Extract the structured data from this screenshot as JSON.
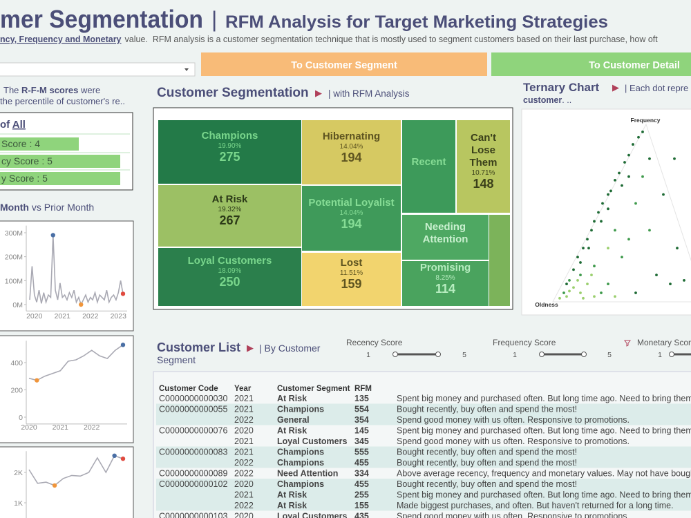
{
  "header": {
    "title": "mer Segmentation",
    "divider": "|",
    "subtitle": "RFM Analysis for Target Marketing Strategies",
    "description_emphasis": "ncy, Frequency and Monetary",
    "description": "value.  RFM analysis is a customer segmentation technique that is mostly used to segment customers based on their last purchase, how oft"
  },
  "nav_buttons": [
    "To Customer Segment",
    "To Customer Detail"
  ],
  "score_note": {
    "prefix": "The",
    "emphasis": "R-F-M scores",
    "suffix": "were",
    "line2": "the percentile of customer's re.."
  },
  "score_box": {
    "title_prefix": "of",
    "title_value": "All",
    "scores": [
      "Score : 4",
      "cy Score : 5",
      "y Score : 5"
    ]
  },
  "trend_title": {
    "emphasis": "Month",
    "rest": "vs Prior Month"
  },
  "trend_charts": [
    {
      "type": "line",
      "categories": [
        null,
        null,
        "2020",
        null,
        null,
        null,
        null,
        null,
        null,
        null,
        null,
        null,
        null,
        null,
        "2021",
        null,
        null,
        null,
        null,
        null,
        null,
        null,
        null,
        null,
        null,
        null,
        "2022",
        null,
        null,
        null,
        null,
        null,
        null,
        null,
        null,
        null,
        null,
        null,
        "2023",
        null,
        null
      ],
      "values": [
        20,
        160,
        40,
        10,
        60,
        5,
        50,
        10,
        40,
        30,
        290,
        60,
        20,
        90,
        30,
        40,
        20,
        50,
        30,
        60,
        10,
        30,
        0,
        20,
        40,
        10,
        30,
        20,
        50,
        10,
        40,
        30,
        20,
        60,
        10,
        30,
        40,
        20,
        50,
        100,
        45
      ],
      "ylim": [
        -15,
        330
      ],
      "yticks": [
        {
          "value": 300,
          "label": "300M"
        },
        {
          "value": 200,
          "label": "200M"
        },
        {
          "value": 100,
          "label": "100M"
        },
        {
          "value": 0,
          "label": "0M"
        }
      ],
      "color": "#a9a9b3",
      "max_color": "#4a6fa5",
      "min_color": "#f0953a",
      "last_color": "#e04a3f"
    },
    {
      "type": "line",
      "categories": [
        "2020",
        null,
        null,
        null,
        "2021",
        null,
        null,
        null,
        "2022",
        null,
        null,
        null,
        null
      ],
      "values": [
        285,
        270,
        300,
        320,
        340,
        410,
        420,
        450,
        490,
        450,
        430,
        490,
        530
      ],
      "ylim": [
        -30,
        560
      ],
      "yticks": [
        400,
        200,
        0
      ],
      "color": "#a9a9b3",
      "max_color": "#4a6fa5",
      "min_color": "#f0953a",
      "last_color": "#e04a3f"
    },
    {
      "type": "line",
      "categories": [
        null,
        null,
        null,
        null,
        null,
        null,
        null,
        null,
        null,
        null,
        null,
        null
      ],
      "values": [
        2090,
        1640,
        1680,
        1570,
        1800,
        1900,
        1880,
        2000,
        2480,
        2000,
        2550,
        2450
      ],
      "ylim": [
        500,
        2700
      ],
      "yticks": [
        {
          "value": 2000,
          "label": "2K"
        },
        {
          "value": 1000,
          "label": "1K"
        }
      ],
      "color": "#a9a9b3",
      "max_color": "#4a6fa5",
      "min_color": "#f0953a",
      "last_color": "#e04a3f"
    }
  ],
  "segmentation": {
    "title": "Customer Segmentation",
    "arrow": "▶",
    "subtitle": "| with RFM Analysis",
    "chart": {
      "type": "treemap",
      "segments": [
        {
          "name": "Champions",
          "share": 19.9,
          "share_label": "19.90%",
          "count": 275,
          "color": "#237a48",
          "label_color": "#79d68c"
        },
        {
          "name": "Hibernating",
          "share": 14.04,
          "share_label": "14.04%",
          "count": 194,
          "color": "#d6c962",
          "label_color": "#5e5420"
        },
        {
          "name": "Recent",
          "color": "#3d9a5a",
          "label_color": "#86dc95"
        },
        {
          "name": "Can't Lose Them",
          "share": 10.71,
          "share_label": "10.71%",
          "count": 148,
          "color": "#b8c660",
          "label_color": "#3a3f1a"
        },
        {
          "name": "At Risk",
          "share": 19.32,
          "share_label": "19.32%",
          "count": 267,
          "color": "#9cc064",
          "label_color": "#2c3a18"
        },
        {
          "name": "Potential Loyalist",
          "share": 14.04,
          "share_label": "14.04%",
          "count": 194,
          "color": "#3f9a5a",
          "label_color": "#86dc95"
        },
        {
          "name": "Needing Attention",
          "color": "#4ea862",
          "label_color": "#c9f0cf"
        },
        {
          "name": "Loyal Customers",
          "share": 18.09,
          "share_label": "18.09%",
          "count": 250,
          "color": "#2b7f4c",
          "label_color": "#79d68c"
        },
        {
          "name": "Lost",
          "share": 11.51,
          "share_label": "11.51%",
          "count": 159,
          "color": "#f2d46e",
          "label_color": "#5e5420"
        },
        {
          "name": "Promising",
          "share": 8.25,
          "share_label": "8.25%",
          "count": 114,
          "color": "#4aa35e",
          "label_color": "#b6ecbf"
        }
      ]
    }
  },
  "ternary": {
    "title": "Ternary Chart",
    "arrow": "▶",
    "subtitle": "| Each dot repre",
    "note_emphasis": "customer",
    "note_rest": ". ..",
    "chart": {
      "type": "scatter",
      "top_label": "Frequency",
      "corner_label": "Oldness",
      "xlim": [
        0,
        1
      ],
      "ylim": [
        0,
        1
      ],
      "series": [
        {
          "color": "#1e6b35",
          "x": [
            0.1,
            0.15,
            0.18,
            0.22,
            0.25,
            0.28,
            0.3,
            0.33,
            0.36,
            0.4,
            0.42,
            0.45,
            0.48,
            0.52,
            0.55,
            0.58,
            0.62,
            0.65,
            0.2,
            0.26,
            0.35,
            0.4,
            0.5,
            0.55,
            0.7,
            0.8,
            0.9,
            0.75,
            0.85,
            0.6,
            0.95,
            0.88
          ],
          "y": [
            0.1,
            0.18,
            0.25,
            0.3,
            0.35,
            0.4,
            0.45,
            0.5,
            0.55,
            0.6,
            0.62,
            0.68,
            0.72,
            0.78,
            0.82,
            0.88,
            0.92,
            0.95,
            0.22,
            0.3,
            0.45,
            0.52,
            0.65,
            0.7,
            0.8,
            0.6,
            0.3,
            0.15,
            0.1,
            0.05,
            0.12,
            0.8
          ]
        },
        {
          "color": "#3f9a4c",
          "x": [
            0.08,
            0.12,
            0.2,
            0.3,
            0.4,
            0.5,
            0.45,
            0.6,
            0.65,
            0.55,
            0.35,
            0.7
          ],
          "y": [
            0.05,
            0.12,
            0.15,
            0.2,
            0.1,
            0.25,
            0.4,
            0.55,
            0.7,
            0.35,
            0.05,
            0.4
          ]
        },
        {
          "color": "#9bcf6e",
          "x": [
            0.05,
            0.1,
            0.15,
            0.2,
            0.25,
            0.3,
            0.12,
            0.45,
            0.18,
            0.4,
            0.22,
            0.28
          ],
          "y": [
            0.02,
            0.03,
            0.08,
            0.05,
            0.1,
            0.03,
            0.06,
            0.03,
            0.12,
            0.3,
            0.02,
            0.15
          ]
        }
      ]
    }
  },
  "customer_list": {
    "title": "Customer List",
    "arrow": "▶",
    "subtitle_lines": [
      "| By Customer",
      "Segment"
    ],
    "filters": [
      {
        "label": "Recency Score",
        "min": 1,
        "max": 5
      },
      {
        "label": "Frequency Score",
        "min": 1,
        "max": 5
      },
      {
        "label": "Monetary Score",
        "min": 1
      }
    ],
    "table": {
      "columns": [
        "Customer Code",
        "Year",
        "Customer Segment",
        "RFM"
      ],
      "rows": [
        [
          "C0000000000030",
          2021,
          "At Risk",
          135,
          "Spent big money and purchased often. But long time ago. Need to bring them back"
        ],
        [
          "C0000000000055",
          2021,
          "Champions",
          554,
          "Bought recently, buy often and spend the most!"
        ],
        [
          null,
          2022,
          "General",
          354,
          "Spend good money with us often. Responsive to promotions."
        ],
        [
          "C0000000000076",
          2020,
          "At Risk",
          145,
          "Spent big money and purchased often. But long time ago. Need to bring them back"
        ],
        [
          null,
          2021,
          "Loyal Customers",
          345,
          "Spend good money with us often. Responsive to promotions."
        ],
        [
          "C0000000000083",
          2021,
          "Champions",
          555,
          "Bought recently, buy often and spend the most!"
        ],
        [
          null,
          2022,
          "Champions",
          455,
          "Bought recently, buy often and spend the most!"
        ],
        [
          "C0000000000089",
          2022,
          "Need Attention",
          334,
          "Above average recency, frequency and monetary values. May not have bought ver"
        ],
        [
          "C0000000000102",
          2020,
          "Champions",
          455,
          "Bought recently, buy often and spend the most!"
        ],
        [
          null,
          2021,
          "At Risk",
          255,
          "Spent big money and purchased often. But long time ago. Need to bring them back"
        ],
        [
          null,
          2022,
          "At Risk",
          155,
          "Made biggest purchases, and often. But haven't returned for a long time."
        ],
        [
          "C0000000000103",
          2020,
          "Loyal Customers",
          435,
          "Spend good money with us often. Responsive to promotions."
        ]
      ]
    }
  }
}
